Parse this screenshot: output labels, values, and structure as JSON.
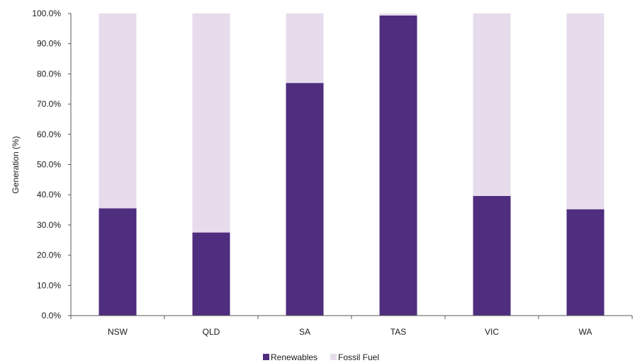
{
  "chart_data": {
    "type": "bar",
    "stacked": true,
    "categories": [
      "NSW",
      "QLD",
      "SA",
      "TAS",
      "VIC",
      "WA"
    ],
    "series": [
      {
        "name": "Renewables",
        "color": "#4f2d7f",
        "values": [
          35.5,
          27.5,
          77.0,
          99.3,
          39.6,
          35.2
        ]
      },
      {
        "name": "Fossil Fuel",
        "color": "#e6dcec",
        "values": [
          64.5,
          72.5,
          23.0,
          0.7,
          60.4,
          64.8
        ]
      }
    ],
    "ylabel": "Generation (%)",
    "ylim": [
      0,
      100
    ],
    "yticks": [
      "0.0%",
      "10.0%",
      "20.0%",
      "30.0%",
      "40.0%",
      "50.0%",
      "60.0%",
      "70.0%",
      "80.0%",
      "90.0%",
      "100.0%"
    ],
    "legend": "bottom-center",
    "grid": false
  }
}
